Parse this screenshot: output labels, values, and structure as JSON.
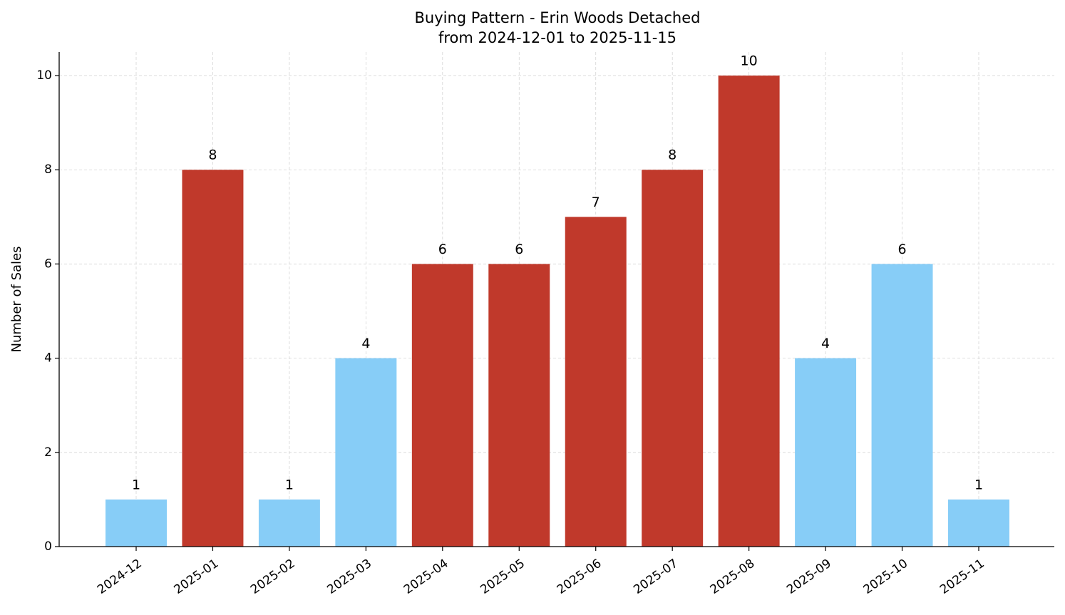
{
  "chart_data": {
    "type": "bar",
    "title": "Buying Pattern - Erin Woods Detached",
    "subtitle": "from 2024-12-01 to 2025-11-15",
    "y_label": "Number of Sales",
    "categories": [
      "2024-12",
      "2025-01",
      "2025-02",
      "2025-03",
      "2025-04",
      "2025-05",
      "2025-06",
      "2025-07",
      "2025-08",
      "2025-09",
      "2025-10",
      "2025-11"
    ],
    "values": [
      1,
      8,
      1,
      4,
      6,
      6,
      7,
      8,
      10,
      4,
      6,
      1
    ],
    "colors": [
      "#87cdf7",
      "#c0392b",
      "#87cdf7",
      "#87cdf7",
      "#c0392b",
      "#c0392b",
      "#c0392b",
      "#c0392b",
      "#c0392b",
      "#87cdf7",
      "#87cdf7",
      "#87cdf7"
    ],
    "ylim": [
      0,
      10.5
    ],
    "yticks": [
      0,
      2,
      4,
      6,
      8,
      10
    ],
    "grid": true
  }
}
